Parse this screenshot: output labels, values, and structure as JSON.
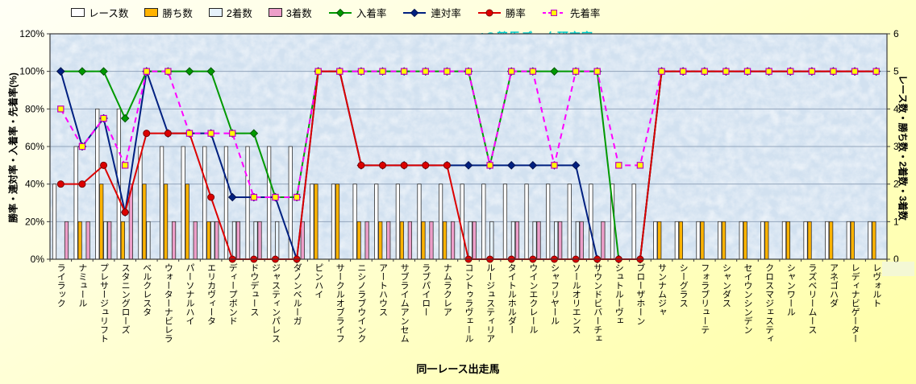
{
  "watermark": "@Caniの競馬データ研究室",
  "colors": {
    "page_bg": "#FFFFC8",
    "plot_bg": "#D2E1F0",
    "grid": "#93A5BB",
    "axis": "#3A3A3A",
    "watermark": "#00CCCC"
  },
  "axes": {
    "left": {
      "title": "勝率・連対率・入着率・先着率(%)",
      "ticks": [
        "0%",
        "20%",
        "40%",
        "60%",
        "80%",
        "100%",
        "120%"
      ],
      "max": 120
    },
    "right": {
      "title": "レース数・勝ち数・2着数・3着数",
      "ticks": [
        "0",
        "1",
        "2",
        "3",
        "4",
        "5",
        "6"
      ],
      "max": 6
    },
    "x": {
      "title": "同一レース出走馬"
    }
  },
  "chart_data": {
    "type": "bar+line combo",
    "left_axis_max": 120,
    "right_axis_max": 6,
    "legend_position": "top",
    "grid": true,
    "categories": [
      "ライラック",
      "ナミュール",
      "プレサージュリフト",
      "スタニングローズ",
      "ベルクレスタ",
      "ウォーターナビレラ",
      "パーソナルハイ",
      "エリカヴィータ",
      "ディープボンド",
      "ドウデュース",
      "ジャスティンパレス",
      "ダノンベルーガ",
      "ピンハイ",
      "サークルオブライフ",
      "ニシノラブウインク",
      "アートハウス",
      "サブライムアンセム",
      "ラブパイロー",
      "ナムラクレア",
      "コントゥラヴェール",
      "ルージュスティリア",
      "タイトルホルダー",
      "ウインエクレール",
      "シャフリヤール",
      "ソールオリエンス",
      "サウンドビバーチェ",
      "シュトルーヴェ",
      "ブローザホーン",
      "サンナムジャ",
      "シーグラス",
      "フォラブリューテ",
      "シャンダス",
      "セイウンシンデン",
      "クロスマジェスティ",
      "シャンワール",
      "ラズベリームース",
      "アネゴハダ",
      "レディナビゲーター",
      "レヴォルト"
    ],
    "bar_series": [
      {
        "id": "race-count",
        "name": "レース数",
        "color": "#FFFFFF",
        "values": [
          2,
          3,
          4,
          4,
          3,
          3,
          3,
          3,
          3,
          3,
          3,
          3,
          2,
          2,
          2,
          2,
          2,
          2,
          2,
          2,
          2,
          2,
          2,
          2,
          2,
          2,
          2,
          2,
          1,
          1,
          1,
          1,
          1,
          1,
          1,
          1,
          1,
          1,
          1
        ]
      },
      {
        "id": "win-count",
        "name": "勝ち数",
        "color": "#FFB300",
        "values": [
          0,
          1,
          2,
          1,
          2,
          2,
          2,
          1,
          0,
          0,
          0,
          0,
          2,
          2,
          1,
          1,
          1,
          1,
          1,
          0,
          0,
          0,
          0,
          0,
          0,
          0,
          0,
          0,
          1,
          1,
          1,
          1,
          1,
          1,
          1,
          1,
          1,
          1,
          1
        ]
      },
      {
        "id": "second-count",
        "name": "2着数",
        "color": "#E6F2FB",
        "values": [
          0,
          0,
          1,
          0,
          1,
          0,
          0,
          1,
          1,
          1,
          1,
          0,
          0,
          0,
          0,
          0,
          0,
          0,
          0,
          1,
          1,
          1,
          1,
          1,
          1,
          0,
          0,
          0,
          0,
          0,
          0,
          0,
          0,
          0,
          0,
          0,
          0,
          0,
          0
        ]
      },
      {
        "id": "third-count",
        "name": "3着数",
        "color": "#ED9EC9",
        "values": [
          1,
          1,
          1,
          2,
          0,
          1,
          1,
          1,
          1,
          1,
          0,
          1,
          0,
          0,
          1,
          1,
          1,
          1,
          1,
          1,
          0,
          1,
          1,
          1,
          1,
          1,
          0,
          0,
          0,
          0,
          0,
          0,
          0,
          0,
          0,
          0,
          0,
          0,
          0
        ]
      }
    ],
    "line_series": [
      {
        "id": "placing-rate",
        "name": "入着率",
        "color": "#009900",
        "marker": "diamond",
        "marker_fill": "#009900",
        "marker_stroke": "#005500",
        "dash": false,
        "values": [
          100,
          100,
          100,
          75,
          100,
          100,
          100,
          100,
          67,
          67,
          33,
          33,
          100,
          100,
          100,
          100,
          100,
          100,
          100,
          100,
          50,
          100,
          100,
          100,
          100,
          100,
          0,
          0,
          100,
          100,
          100,
          100,
          100,
          100,
          100,
          100,
          100,
          100,
          100
        ]
      },
      {
        "id": "quinella-rate",
        "name": "連対率",
        "color": "#002080",
        "marker": "diamond",
        "marker_fill": "#002080",
        "marker_stroke": "#001050",
        "dash": false,
        "values": [
          100,
          60,
          75,
          25,
          100,
          67,
          67,
          67,
          33,
          33,
          33,
          0,
          100,
          100,
          50,
          50,
          50,
          50,
          50,
          50,
          50,
          50,
          50,
          50,
          50,
          0,
          0,
          0,
          100,
          100,
          100,
          100,
          100,
          100,
          100,
          100,
          100,
          100,
          100
        ]
      },
      {
        "id": "win-rate",
        "name": "勝率",
        "color": "#DC0000",
        "marker": "circle",
        "marker_fill": "#DC0000",
        "marker_stroke": "#7A0000",
        "dash": false,
        "values": [
          40,
          40,
          50,
          25,
          67,
          67,
          67,
          33,
          0,
          0,
          0,
          0,
          100,
          100,
          50,
          50,
          50,
          50,
          50,
          0,
          0,
          0,
          0,
          0,
          0,
          0,
          0,
          0,
          100,
          100,
          100,
          100,
          100,
          100,
          100,
          100,
          100,
          100,
          100
        ]
      },
      {
        "id": "first-finish-rate",
        "name": "先着率",
        "color": "#FF00FF",
        "marker": "square",
        "marker_fill": "#FFFF00",
        "marker_stroke": "#C000C0",
        "dash": true,
        "values": [
          80,
          60,
          75,
          50,
          100,
          100,
          67,
          67,
          67,
          33,
          33,
          33,
          100,
          100,
          100,
          100,
          100,
          100,
          100,
          100,
          50,
          100,
          100,
          50,
          100,
          100,
          50,
          50,
          100,
          100,
          100,
          100,
          100,
          100,
          100,
          100,
          100,
          100,
          100
        ]
      }
    ]
  }
}
